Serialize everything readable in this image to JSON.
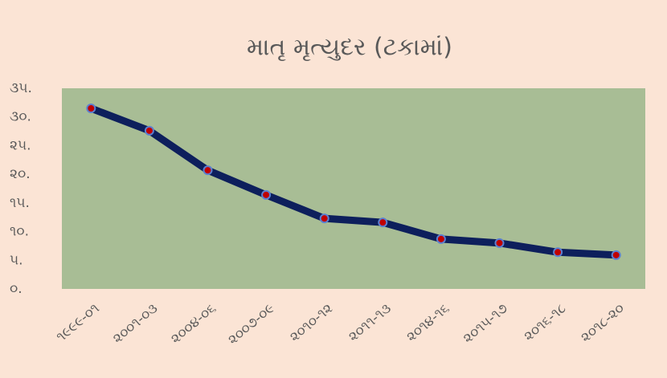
{
  "chart_data": {
    "type": "line",
    "title": "માતૃ મૃત્યુદર (ટકામાં)",
    "categories": [
      "૧૯૯૯-૦૧",
      "૨૦૦૧-૦૩",
      "૨૦૦૪-૦૬",
      "૨૦૦૭-૦૯",
      "૨૦૧૦-૧૨",
      "૨૦૧૧-૧૩",
      "૨૦૧૪-૧૬",
      "૨૦૧૫-૧૭",
      "૨૦૧૬-૧૮",
      "૨૦૧૮-૨૦"
    ],
    "series": [
      {
        "color": "#0d1f5c",
        "marker_color": "#c00000",
        "values": [
          31.5,
          27.6,
          20.7,
          16.4,
          12.3,
          11.6,
          8.7,
          8.0,
          6.4,
          5.9
        ]
      }
    ],
    "ylim": [
      0,
      35
    ],
    "yticks": [
      {
        "value": 0,
        "label": "૦."
      },
      {
        "value": 5,
        "label": "૫."
      },
      {
        "value": 10,
        "label": "૧૦."
      },
      {
        "value": 15,
        "label": "૧૫."
      },
      {
        "value": 20,
        "label": "૨૦."
      },
      {
        "value": 25,
        "label": "૨૫."
      },
      {
        "value": 30,
        "label": "૩૦."
      },
      {
        "value": 35,
        "label": "૩૫."
      }
    ],
    "grid": false,
    "plot_background": "#a8bd95",
    "background": "#fbe4d5"
  }
}
